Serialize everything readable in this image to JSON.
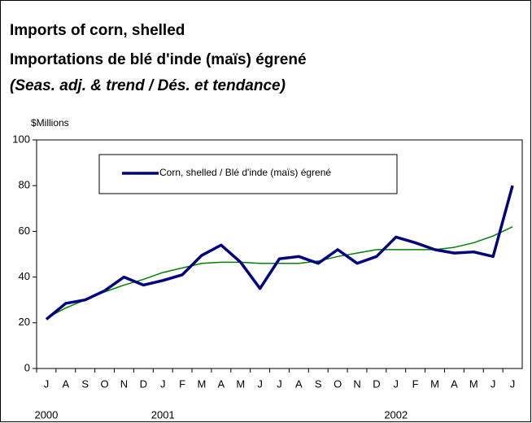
{
  "chart_data": {
    "type": "line",
    "title": "Imports of corn, shelled",
    "subtitle": "Importations de blé d'inde (maïs) égrené",
    "note": "(Seas. adj. & trend / Dés. et tendance)",
    "y_label": "$Millions",
    "categories": [
      "J",
      "A",
      "S",
      "O",
      "N",
      "D",
      "J",
      "F",
      "M",
      "A",
      "M",
      "J",
      "J",
      "A",
      "S",
      "O",
      "N",
      "D",
      "J",
      "F",
      "M",
      "A",
      "M",
      "J",
      "J"
    ],
    "x_groups": [
      {
        "label": "2000",
        "start": 0
      },
      {
        "label": "2001",
        "start": 6
      },
      {
        "label": "2002",
        "start": 18
      }
    ],
    "series": [
      {
        "name": "Corn, shelled / Blé d'inde (maïs) égrené",
        "color": "#000080",
        "width": 3.5,
        "values": [
          21.5,
          28.5,
          30,
          34,
          40,
          36.5,
          38.5,
          41,
          49.5,
          54,
          46.5,
          35,
          48,
          49,
          46,
          52,
          46,
          49,
          57.5,
          55,
          52,
          50.5,
          51,
          49,
          80
        ]
      },
      {
        "color": "#008000",
        "width": 1.5,
        "values": [
          22,
          26.5,
          30,
          33.5,
          36.5,
          39,
          42,
          44,
          46,
          46.5,
          46.5,
          46,
          46,
          46,
          47,
          49,
          50.5,
          52,
          52,
          52,
          52,
          53,
          55,
          58,
          62
        ]
      }
    ],
    "ylim": [
      0,
      100
    ],
    "yticks": [
      0,
      20,
      40,
      60,
      80,
      100
    ],
    "grid": false,
    "legend": "top"
  }
}
